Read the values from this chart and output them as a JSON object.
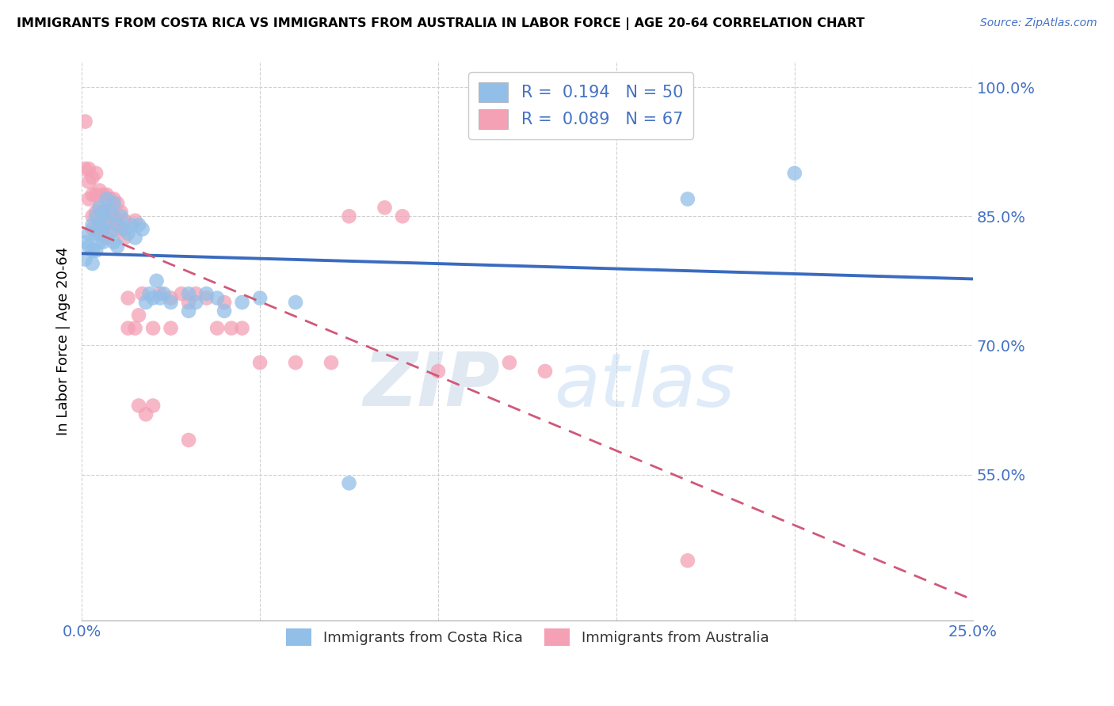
{
  "title": "IMMIGRANTS FROM COSTA RICA VS IMMIGRANTS FROM AUSTRALIA IN LABOR FORCE | AGE 20-64 CORRELATION CHART",
  "source": "Source: ZipAtlas.com",
  "ylabel": "In Labor Force | Age 20-64",
  "xmin": 0.0,
  "xmax": 0.25,
  "ymin": 0.38,
  "ymax": 1.03,
  "yticks": [
    1.0,
    0.85,
    0.7,
    0.55
  ],
  "ytick_labels": [
    "100.0%",
    "85.0%",
    "70.0%",
    "55.0%"
  ],
  "xticks": [
    0.0,
    0.05,
    0.1,
    0.15,
    0.2,
    0.25
  ],
  "xtick_labels": [
    "0.0%",
    "",
    "",
    "",
    "",
    "25.0%"
  ],
  "watermark_zip": "ZIP",
  "watermark_atlas": "atlas",
  "blue_color": "#92bfe8",
  "pink_color": "#f4a0b5",
  "blue_line_color": "#3a6bbf",
  "pink_line_color": "#d05878",
  "costa_rica_label": "Immigrants from Costa Rica",
  "australia_label": "Immigrants from Australia",
  "legend_r1_val": "0.194",
  "legend_n1_val": "50",
  "legend_r2_val": "0.089",
  "legend_n2_val": "67",
  "costa_rica_points": [
    [
      0.001,
      0.82
    ],
    [
      0.001,
      0.8
    ],
    [
      0.002,
      0.83
    ],
    [
      0.002,
      0.815
    ],
    [
      0.003,
      0.84
    ],
    [
      0.003,
      0.81
    ],
    [
      0.003,
      0.795
    ],
    [
      0.004,
      0.85
    ],
    [
      0.004,
      0.83
    ],
    [
      0.004,
      0.81
    ],
    [
      0.005,
      0.86
    ],
    [
      0.005,
      0.84
    ],
    [
      0.005,
      0.82
    ],
    [
      0.006,
      0.855
    ],
    [
      0.006,
      0.835
    ],
    [
      0.006,
      0.82
    ],
    [
      0.007,
      0.87
    ],
    [
      0.007,
      0.845
    ],
    [
      0.008,
      0.855
    ],
    [
      0.008,
      0.83
    ],
    [
      0.009,
      0.865
    ],
    [
      0.009,
      0.82
    ],
    [
      0.01,
      0.84
    ],
    [
      0.01,
      0.815
    ],
    [
      0.011,
      0.85
    ],
    [
      0.012,
      0.835
    ],
    [
      0.013,
      0.83
    ],
    [
      0.014,
      0.84
    ],
    [
      0.015,
      0.825
    ],
    [
      0.016,
      0.84
    ],
    [
      0.017,
      0.835
    ],
    [
      0.018,
      0.75
    ],
    [
      0.019,
      0.76
    ],
    [
      0.02,
      0.755
    ],
    [
      0.021,
      0.775
    ],
    [
      0.022,
      0.755
    ],
    [
      0.023,
      0.76
    ],
    [
      0.025,
      0.75
    ],
    [
      0.03,
      0.74
    ],
    [
      0.03,
      0.76
    ],
    [
      0.032,
      0.75
    ],
    [
      0.035,
      0.76
    ],
    [
      0.038,
      0.755
    ],
    [
      0.04,
      0.74
    ],
    [
      0.045,
      0.75
    ],
    [
      0.05,
      0.755
    ],
    [
      0.06,
      0.75
    ],
    [
      0.075,
      0.54
    ],
    [
      0.17,
      0.87
    ],
    [
      0.2,
      0.9
    ]
  ],
  "australia_points": [
    [
      0.001,
      0.96
    ],
    [
      0.001,
      0.905
    ],
    [
      0.002,
      0.905
    ],
    [
      0.002,
      0.89
    ],
    [
      0.002,
      0.87
    ],
    [
      0.003,
      0.895
    ],
    [
      0.003,
      0.875
    ],
    [
      0.003,
      0.85
    ],
    [
      0.003,
      0.835
    ],
    [
      0.004,
      0.9
    ],
    [
      0.004,
      0.875
    ],
    [
      0.004,
      0.855
    ],
    [
      0.004,
      0.835
    ],
    [
      0.005,
      0.88
    ],
    [
      0.005,
      0.86
    ],
    [
      0.005,
      0.845
    ],
    [
      0.005,
      0.83
    ],
    [
      0.006,
      0.875
    ],
    [
      0.006,
      0.855
    ],
    [
      0.006,
      0.84
    ],
    [
      0.007,
      0.875
    ],
    [
      0.007,
      0.855
    ],
    [
      0.007,
      0.84
    ],
    [
      0.007,
      0.825
    ],
    [
      0.008,
      0.87
    ],
    [
      0.008,
      0.85
    ],
    [
      0.009,
      0.87
    ],
    [
      0.009,
      0.85
    ],
    [
      0.009,
      0.835
    ],
    [
      0.01,
      0.865
    ],
    [
      0.01,
      0.845
    ],
    [
      0.011,
      0.855
    ],
    [
      0.011,
      0.835
    ],
    [
      0.012,
      0.845
    ],
    [
      0.012,
      0.825
    ],
    [
      0.013,
      0.755
    ],
    [
      0.013,
      0.72
    ],
    [
      0.015,
      0.845
    ],
    [
      0.015,
      0.72
    ],
    [
      0.016,
      0.735
    ],
    [
      0.016,
      0.63
    ],
    [
      0.017,
      0.76
    ],
    [
      0.018,
      0.62
    ],
    [
      0.02,
      0.72
    ],
    [
      0.02,
      0.63
    ],
    [
      0.022,
      0.76
    ],
    [
      0.025,
      0.755
    ],
    [
      0.025,
      0.72
    ],
    [
      0.028,
      0.76
    ],
    [
      0.03,
      0.75
    ],
    [
      0.03,
      0.59
    ],
    [
      0.032,
      0.76
    ],
    [
      0.035,
      0.755
    ],
    [
      0.038,
      0.72
    ],
    [
      0.04,
      0.75
    ],
    [
      0.042,
      0.72
    ],
    [
      0.045,
      0.72
    ],
    [
      0.05,
      0.68
    ],
    [
      0.06,
      0.68
    ],
    [
      0.07,
      0.68
    ],
    [
      0.075,
      0.85
    ],
    [
      0.085,
      0.86
    ],
    [
      0.09,
      0.85
    ],
    [
      0.1,
      0.67
    ],
    [
      0.12,
      0.68
    ],
    [
      0.13,
      0.67
    ],
    [
      0.17,
      0.45
    ]
  ]
}
